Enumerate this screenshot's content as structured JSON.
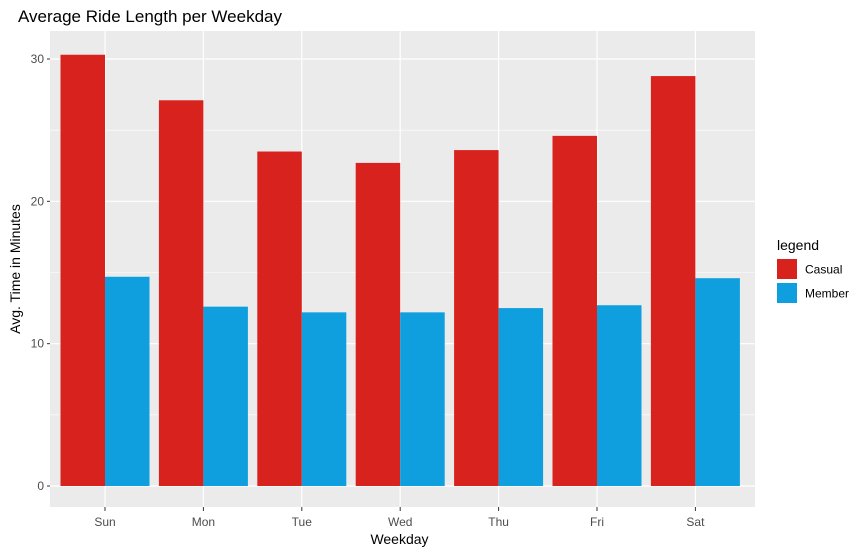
{
  "chart_data": {
    "type": "bar",
    "title": "Average Ride Length per Weekday",
    "xlabel": "Weekday",
    "ylabel": "Avg. Time in Minutes",
    "categories": [
      "Sun",
      "Mon",
      "Tue",
      "Wed",
      "Thu",
      "Fri",
      "Sat"
    ],
    "series": [
      {
        "name": "Casual",
        "values": [
          30.3,
          27.1,
          23.5,
          22.7,
          23.6,
          24.6,
          28.8
        ],
        "color": "#d7221e"
      },
      {
        "name": "Member",
        "values": [
          14.7,
          12.6,
          12.2,
          12.2,
          12.5,
          12.7,
          14.6
        ],
        "color": "#0f9ede"
      }
    ],
    "ylim": [
      0,
      31.7
    ],
    "yticks": [
      0,
      10,
      20,
      30
    ],
    "grid": true,
    "panel_background": "#ebebeb",
    "legend": {
      "title": "legend",
      "placement": "right"
    }
  }
}
